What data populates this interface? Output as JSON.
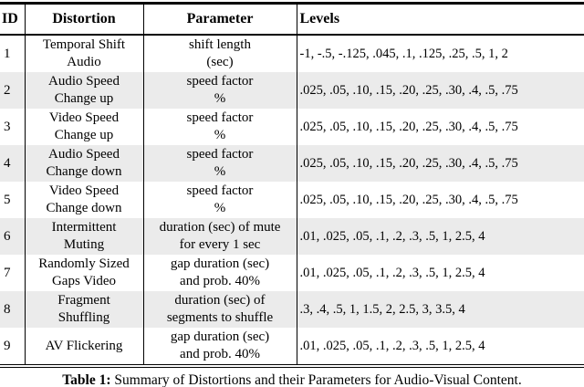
{
  "table": {
    "headers": [
      "ID",
      "Distortion",
      "Parameter",
      "Levels"
    ],
    "row_shade_color": "#ebebeb",
    "rows": [
      {
        "id": "1",
        "distortion": "Temporal Shift\nAudio",
        "parameter": "shift length\n(sec)",
        "levels": "-1, -.5, -.125, .045, .1, .125, .25, .5, 1, 2"
      },
      {
        "id": "2",
        "distortion": "Audio Speed\nChange up",
        "parameter": "speed factor\n%",
        "levels": ".025, .05, .10, .15, .20, .25, .30, .4, .5, .75"
      },
      {
        "id": "3",
        "distortion": "Video Speed\nChange up",
        "parameter": "speed factor\n%",
        "levels": ".025, .05, .10, .15, .20, .25, .30, .4, .5, .75"
      },
      {
        "id": "4",
        "distortion": "Audio Speed\nChange down",
        "parameter": "speed factor\n%",
        "levels": ".025, .05, .10, .15, .20, .25, .30, .4, .5, .75"
      },
      {
        "id": "5",
        "distortion": "Video Speed\nChange down",
        "parameter": "speed factor\n%",
        "levels": ".025, .05, .10, .15, .20, .25, .30, .4, .5, .75"
      },
      {
        "id": "6",
        "distortion": "Intermittent\nMuting",
        "parameter": "duration (sec) of mute\nfor every 1 sec",
        "levels": ".01, .025, .05, .1, .2, .3, .5, 1, 2.5, 4"
      },
      {
        "id": "7",
        "distortion": "Randomly Sized\nGaps Video",
        "parameter": "gap duration (sec)\nand prob. 40%",
        "levels": ".01, .025, .05, .1, .2, .3, .5, 1, 2.5, 4"
      },
      {
        "id": "8",
        "distortion": "Fragment\nShuffling",
        "parameter": "duration (sec) of\nsegments to shuffle",
        "levels": ".3, .4, .5, 1, 1.5, 2, 2.5, 3, 3.5, 4"
      },
      {
        "id": "9",
        "distortion": "AV Flickering",
        "parameter": "gap duration (sec)\nand prob. 40%",
        "levels": ".01, .025, .05, .1, .2, .3, .5, 1, 2.5, 4"
      }
    ]
  },
  "caption": {
    "label": "Table 1:",
    "text": " Summary of Distortions and their Parameters for Audio-Visual Content."
  }
}
